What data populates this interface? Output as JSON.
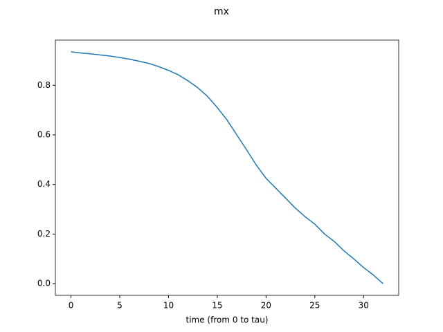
{
  "chart_data": {
    "type": "line",
    "title": "mx",
    "xlabel": "time (from 0 to tau)",
    "x": [
      0,
      1,
      2,
      3,
      4,
      5,
      6,
      7,
      8,
      9,
      10,
      11,
      12,
      13,
      14,
      15,
      16,
      17,
      18,
      19,
      20,
      21,
      22,
      23,
      24,
      25,
      26,
      27,
      28,
      29,
      30,
      31,
      32
    ],
    "series": [
      {
        "name": "mx",
        "color": "#1f77b4",
        "values": [
          0.935,
          0.93,
          0.927,
          0.922,
          0.918,
          0.912,
          0.905,
          0.897,
          0.888,
          0.875,
          0.86,
          0.842,
          0.818,
          0.79,
          0.755,
          0.71,
          0.66,
          0.6,
          0.54,
          0.478,
          0.425,
          0.385,
          0.345,
          0.305,
          0.27,
          0.24,
          0.2,
          0.17,
          0.132,
          0.1,
          0.065,
          0.035,
          0.0
        ]
      }
    ],
    "xlim": [
      -1.6,
      33.6
    ],
    "ylim": [
      -0.047,
      0.982
    ],
    "xticks": [
      0,
      5,
      10,
      15,
      20,
      25,
      30
    ],
    "yticks": [
      {
        "value": 0,
        "label": "0.0"
      },
      {
        "value": 0.2,
        "label": "0.2"
      },
      {
        "value": 0.4,
        "label": "0.4"
      },
      {
        "value": 0.6,
        "label": "0.6"
      },
      {
        "value": 0.8,
        "label": "0.8"
      }
    ]
  }
}
